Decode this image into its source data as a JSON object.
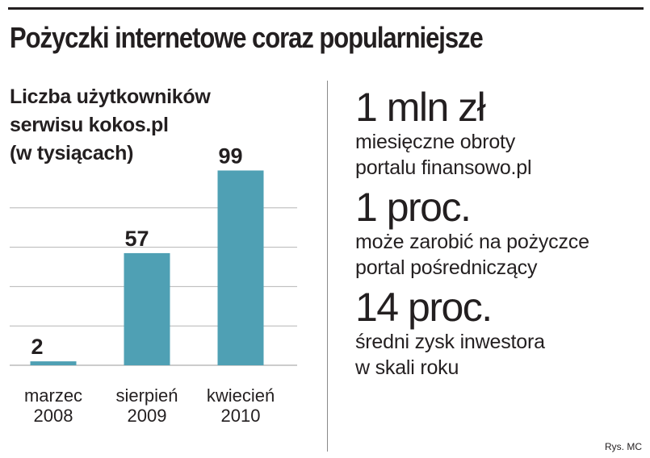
{
  "headline": "Pożyczki internetowe coraz popularniejsze",
  "credit": "Rys. MC",
  "colors": {
    "bar": "#4fa0b4",
    "grid": "#b5b5b5",
    "text": "#231f20"
  },
  "chart_data": {
    "type": "bar",
    "title_lines": [
      "Liczba użytkowników",
      "serwisu kokos.pl",
      "(w tysiącach)"
    ],
    "categories": [
      [
        "marzec",
        "2008"
      ],
      [
        "sierpień",
        "2009"
      ],
      [
        "kwiecień",
        "2010"
      ]
    ],
    "values": [
      2,
      57,
      99
    ],
    "data_labels": [
      "2",
      "57",
      "99"
    ],
    "ylim": [
      0,
      100
    ],
    "grid": true
  },
  "stats": [
    {
      "value": "1 mln zł",
      "desc": [
        "miesięczne obroty",
        "portalu finansowo.pl"
      ]
    },
    {
      "value": "1 proc.",
      "desc": [
        "może zarobić na pożyczce",
        "portal pośredniczący"
      ]
    },
    {
      "value": "14 proc.",
      "desc": [
        "średni zysk inwestora",
        "w skali roku"
      ]
    }
  ]
}
